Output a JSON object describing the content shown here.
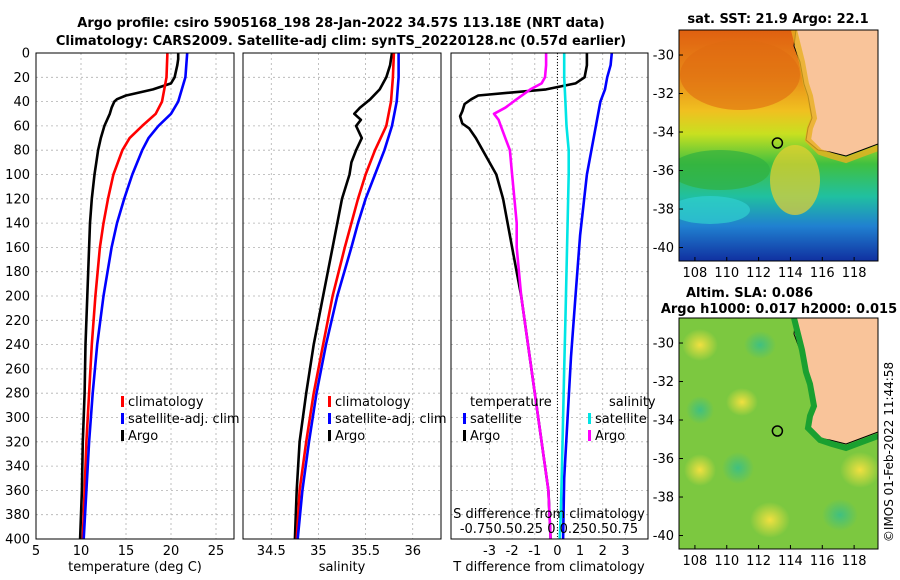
{
  "title_line1": "Argo profile: csiro 5905168_198 28-Jan-2022 34.57S 113.18E (NRT data)",
  "title_line2": "Climatology: CARS2009. Satellite-adj clim: synTS_20220128.nc (0.57d earlier)",
  "sst_title": "sat. SST: 21.9 Argo: 22.1",
  "sla_title1": "Altim. SLA: 0.086",
  "sla_title2": "Argo h1000: 0.017 h2000: 0.015",
  "watermark": "©IMOS 01-Feb-2022 11:44:58",
  "s_diff_label": "S difference from climatology",
  "s_diff_ticks": "-0.750.50.25  0  0.250.50.75",
  "colors": {
    "argo": "#000000",
    "climatology": "#ff0000",
    "satellite": "#0000ff",
    "sal_sat": "#00e5e5",
    "sal_argo": "#ff00ff"
  },
  "chart_data": [
    {
      "type": "line",
      "xlabel": "temperature (deg C)",
      "xlim": [
        5,
        27
      ],
      "xticks": [
        5,
        10,
        15,
        20,
        25
      ],
      "ylim": [
        0,
        400
      ],
      "yticks": [
        0,
        20,
        40,
        60,
        80,
        100,
        120,
        140,
        160,
        180,
        200,
        220,
        240,
        260,
        280,
        300,
        320,
        340,
        360,
        380,
        400
      ],
      "grid": true,
      "legend": [
        "climatology",
        "satellite-adj. clim",
        "Argo"
      ],
      "series": [
        {
          "name": "Argo",
          "color": "#000000",
          "depth": [
            0,
            5,
            10,
            20,
            25,
            30,
            35,
            38,
            40,
            45,
            50,
            60,
            70,
            80,
            90,
            100,
            120,
            140,
            160,
            180,
            200,
            240,
            280,
            320,
            360,
            400
          ],
          "values": [
            20.8,
            20.8,
            20.7,
            20.4,
            20.0,
            18.0,
            15.0,
            14.0,
            13.7,
            13.4,
            13.2,
            12.6,
            12.2,
            11.9,
            11.7,
            11.5,
            11.2,
            11.0,
            10.9,
            10.8,
            10.7,
            10.5,
            10.4,
            10.2,
            10.1,
            9.9
          ]
        },
        {
          "name": "climatology",
          "color": "#ff0000",
          "depth": [
            0,
            20,
            40,
            50,
            60,
            70,
            80,
            100,
            120,
            140,
            160,
            200,
            240,
            280,
            320,
            360,
            400
          ],
          "values": [
            19.6,
            19.5,
            19.0,
            18.3,
            16.8,
            15.4,
            14.6,
            13.6,
            13.0,
            12.5,
            12.1,
            11.6,
            11.2,
            10.9,
            10.6,
            10.4,
            10.2
          ]
        },
        {
          "name": "satellite-adj. clim",
          "color": "#0000ff",
          "depth": [
            0,
            20,
            40,
            50,
            60,
            70,
            80,
            100,
            120,
            140,
            160,
            200,
            240,
            280,
            320,
            360,
            400
          ],
          "values": [
            21.8,
            21.6,
            20.8,
            20.0,
            18.6,
            17.5,
            16.8,
            15.7,
            14.8,
            14.0,
            13.4,
            12.5,
            11.8,
            11.3,
            10.9,
            10.6,
            10.3
          ]
        }
      ]
    },
    {
      "type": "line",
      "xlabel": "salinity",
      "xlim": [
        34.2,
        36.3
      ],
      "xticks": [
        34.5,
        35,
        35.5,
        36
      ],
      "xticklabels": [
        "34.5",
        "35",
        "35.5",
        "36"
      ],
      "ylim": [
        0,
        400
      ],
      "grid": true,
      "legend": [
        "climatology",
        "satellite-adj. clim",
        "Argo"
      ],
      "series": [
        {
          "name": "Argo",
          "color": "#000000",
          "depth": [
            0,
            5,
            10,
            20,
            30,
            38,
            45,
            50,
            55,
            60,
            70,
            80,
            90,
            100,
            120,
            140,
            160,
            200,
            240,
            280,
            320,
            360,
            400
          ],
          "values": [
            35.78,
            35.77,
            35.76,
            35.72,
            35.65,
            35.55,
            35.44,
            35.38,
            35.45,
            35.4,
            35.46,
            35.4,
            35.35,
            35.33,
            35.25,
            35.2,
            35.15,
            35.05,
            34.95,
            34.87,
            34.8,
            34.77,
            34.75
          ]
        },
        {
          "name": "climatology",
          "color": "#ff0000",
          "depth": [
            0,
            20,
            40,
            60,
            80,
            100,
            120,
            140,
            160,
            200,
            240,
            280,
            320,
            360,
            400
          ],
          "values": [
            35.8,
            35.79,
            35.77,
            35.72,
            35.6,
            35.5,
            35.42,
            35.35,
            35.28,
            35.15,
            35.05,
            34.95,
            34.87,
            34.8,
            34.77
          ]
        },
        {
          "name": "satellite-adj. clim",
          "color": "#0000ff",
          "depth": [
            0,
            20,
            40,
            60,
            80,
            100,
            120,
            140,
            160,
            200,
            240,
            280,
            320,
            360,
            400
          ],
          "values": [
            35.85,
            35.85,
            35.83,
            35.78,
            35.7,
            35.6,
            35.5,
            35.42,
            35.35,
            35.2,
            35.08,
            34.98,
            34.9,
            34.83,
            34.78
          ]
        }
      ]
    },
    {
      "type": "line",
      "xlabel": "T difference from climatology",
      "xlim": [
        -4.7,
        4.0
      ],
      "xticks": [
        -3,
        -2,
        -1,
        0,
        1,
        2,
        3
      ],
      "ylim": [
        0,
        400
      ],
      "grid": true,
      "legend": [
        "temperature",
        "satellite",
        "Argo",
        "salinity",
        "satellite",
        "Argo"
      ],
      "series": [
        {
          "name": "temperature Argo",
          "color": "#000000",
          "depth": [
            0,
            5,
            10,
            20,
            25,
            30,
            35,
            38,
            42,
            48,
            52,
            58,
            62,
            70,
            80,
            100,
            120,
            140,
            160,
            200,
            240,
            280,
            320,
            360,
            400
          ],
          "values": [
            1.3,
            1.3,
            1.3,
            1.2,
            0.8,
            -0.5,
            -3.5,
            -3.8,
            -4.1,
            -4.2,
            -4.3,
            -4.2,
            -3.9,
            -3.6,
            -3.3,
            -2.7,
            -2.4,
            -2.2,
            -2.0,
            -1.6,
            -1.3,
            -1.0,
            -0.7,
            -0.4,
            -0.3
          ]
        },
        {
          "name": "temperature satellite",
          "color": "#0000ff",
          "depth": [
            0,
            10,
            20,
            30,
            40,
            60,
            80,
            100,
            150,
            200,
            250,
            300,
            350,
            400
          ],
          "values": [
            2.4,
            2.35,
            2.2,
            2.1,
            1.9,
            1.7,
            1.5,
            1.3,
            1.0,
            0.8,
            0.6,
            0.45,
            0.3,
            0.25
          ]
        },
        {
          "name": "salinity satellite",
          "color": "#00e5e5",
          "depth": [
            0,
            20,
            40,
            60,
            80,
            100,
            140,
            180,
            220,
            260,
            300,
            340,
            380,
            400
          ],
          "values": [
            0.3,
            0.3,
            0.35,
            0.4,
            0.5,
            0.5,
            0.45,
            0.4,
            0.35,
            0.3,
            0.25,
            0.2,
            0.15,
            0.1
          ]
        },
        {
          "name": "salinity Argo",
          "color": "#ff00ff",
          "depth": [
            0,
            10,
            20,
            25,
            30,
            38,
            45,
            50,
            55,
            60,
            70,
            80,
            100,
            120,
            140,
            160,
            200,
            240,
            280,
            320,
            360,
            400
          ],
          "values": [
            -0.5,
            -0.5,
            -0.55,
            -0.7,
            -1.2,
            -1.8,
            -2.3,
            -2.8,
            -2.6,
            -2.5,
            -2.3,
            -2.1,
            -2.0,
            -1.9,
            -1.8,
            -1.8,
            -1.6,
            -1.3,
            -1.0,
            -0.7,
            -0.4,
            -0.3
          ]
        }
      ]
    },
    {
      "type": "heatmap",
      "title": "sat. SST: 21.9 Argo: 22.1",
      "xlim": [
        107,
        119.5
      ],
      "ylim": [
        -40.7,
        -28.7
      ],
      "xticks": [
        108,
        110,
        112,
        114,
        116,
        118
      ],
      "yticks": [
        -30,
        -32,
        -34,
        -36,
        -38,
        -40
      ],
      "marker": {
        "lon": 113.18,
        "lat": -34.57
      }
    },
    {
      "type": "heatmap",
      "title": "Altim. SLA: 0.086 / Argo h1000: 0.017 h2000: 0.015",
      "xlim": [
        107,
        119.5
      ],
      "ylim": [
        -40.7,
        -28.7
      ],
      "xticks": [
        108,
        110,
        112,
        114,
        116,
        118
      ],
      "yticks": [
        -30,
        -32,
        -34,
        -36,
        -38,
        -40
      ],
      "marker": {
        "lon": 113.18,
        "lat": -34.57
      }
    }
  ]
}
